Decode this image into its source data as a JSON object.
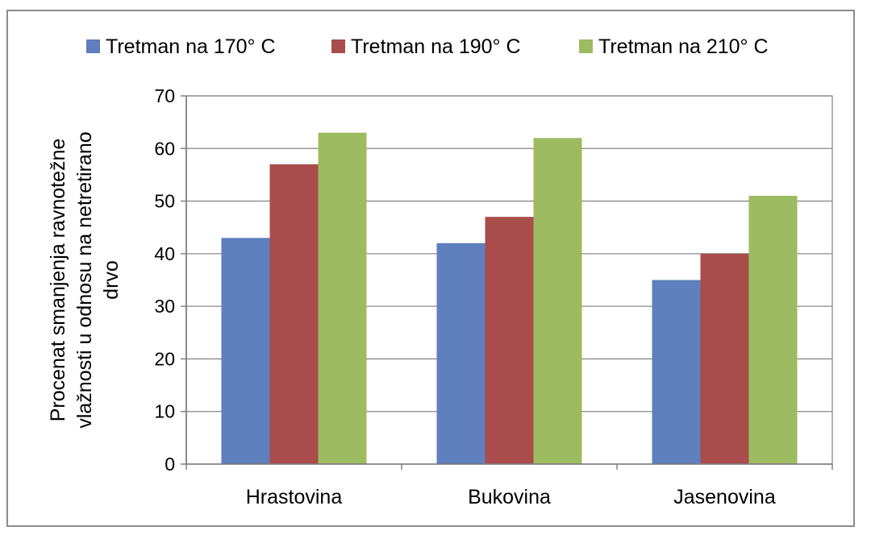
{
  "chart_data": {
    "type": "bar",
    "title": "",
    "xlabel": "",
    "ylabel": "Procenat smanjenja ravnotežne vlažnosti u odnosu na netretirano drvo",
    "ylabel_lines": [
      "Procenat smanjenja ravnotežne",
      "vlažnosti u odnosu na netretirano",
      "drvo"
    ],
    "categories": [
      "Hrastovina",
      "Bukovina",
      "Jasenovina"
    ],
    "series": [
      {
        "name": "Tretman na 170° C",
        "color": "#5f7fbd",
        "values": [
          43,
          42,
          35
        ]
      },
      {
        "name": "Tretman na 190° C",
        "color": "#a84d4b",
        "values": [
          57,
          47,
          40
        ]
      },
      {
        "name": "Tretman na 210° C",
        "color": "#9dbb61",
        "values": [
          63,
          62,
          51
        ]
      }
    ],
    "ylim": [
      0,
      70
    ],
    "yticks": [
      0,
      10,
      20,
      30,
      40,
      50,
      60,
      70
    ],
    "grid": true,
    "legend": "top"
  }
}
